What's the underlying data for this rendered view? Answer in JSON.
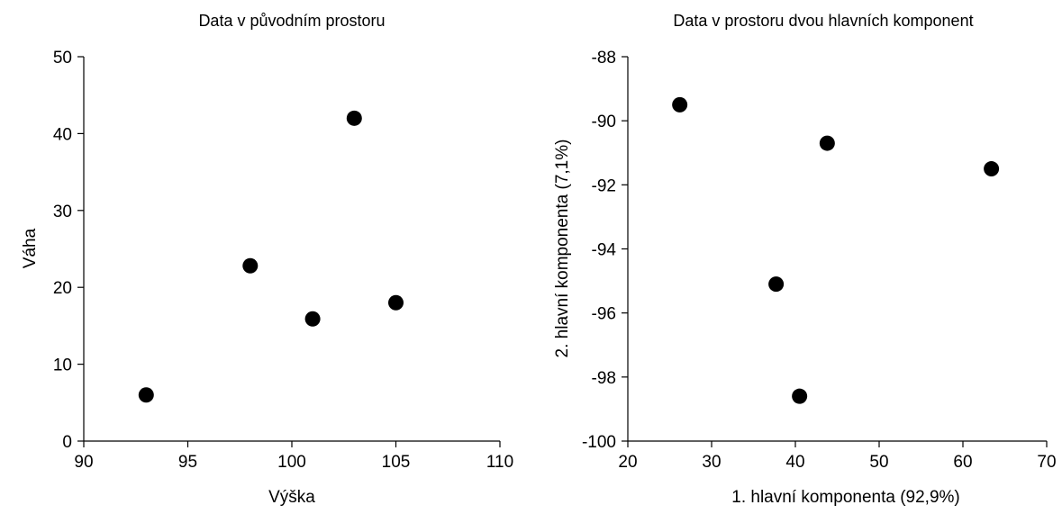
{
  "chart_data": [
    {
      "type": "scatter",
      "title": "Data v původním prostoru",
      "xlabel": "Výška",
      "ylabel": "Váha",
      "xlim": [
        90,
        110
      ],
      "ylim": [
        0,
        50
      ],
      "xticks": [
        90,
        95,
        100,
        105,
        110
      ],
      "yticks": [
        0,
        10,
        20,
        30,
        40,
        50
      ],
      "xtick_labels": [
        "90",
        "95",
        "100",
        "105",
        "110"
      ],
      "ytick_labels": [
        "0",
        "10",
        "20",
        "30",
        "40",
        "50"
      ],
      "grid": false,
      "points": [
        {
          "x": 93,
          "y": 6
        },
        {
          "x": 98,
          "y": 22.8
        },
        {
          "x": 101,
          "y": 15.9
        },
        {
          "x": 103,
          "y": 42
        },
        {
          "x": 105,
          "y": 18
        }
      ]
    },
    {
      "type": "scatter",
      "title": "Data v prostoru dvou hlavních komponent",
      "xlabel": "1. hlavní komponenta (92,9%)",
      "ylabel": "2. hlavní komponenta (7,1%)",
      "xlim": [
        20,
        70
      ],
      "ylim": [
        -100,
        -88
      ],
      "xticks": [
        20,
        30,
        40,
        50,
        60,
        70
      ],
      "yticks": [
        -100,
        -98,
        -96,
        -94,
        -92,
        -90,
        -88
      ],
      "xtick_labels": [
        "20",
        "30",
        "40",
        "50",
        "60",
        "70"
      ],
      "ytick_labels": [
        "-100",
        "-98",
        "-96",
        "-94",
        "-92",
        "-90",
        "-88"
      ],
      "grid": false,
      "points": [
        {
          "x": 26.2,
          "y": -89.5
        },
        {
          "x": 37.7,
          "y": -95.1
        },
        {
          "x": 40.5,
          "y": -98.6
        },
        {
          "x": 43.8,
          "y": -90.7
        },
        {
          "x": 63.4,
          "y": -91.5
        }
      ]
    }
  ]
}
